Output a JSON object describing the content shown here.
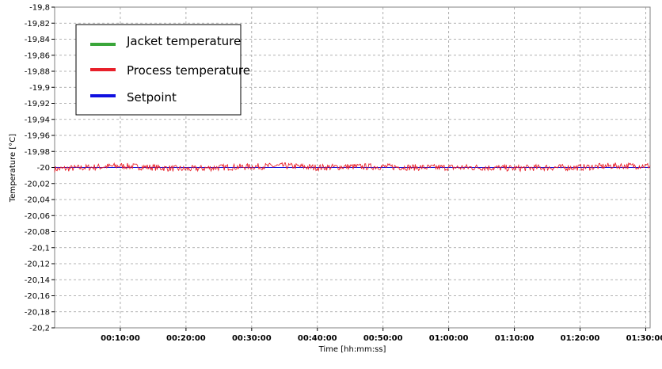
{
  "chart_data": {
    "type": "line",
    "xlabel": "Time [hh:mm:ss]",
    "ylabel": "Temperature [°C]",
    "ylim": [
      -20.2,
      -19.8
    ],
    "xlim": [
      "00:00:00",
      "01:30:40"
    ],
    "y_ticks": [
      -19.8,
      -19.82,
      -19.84,
      -19.86,
      -19.88,
      -19.9,
      -19.92,
      -19.94,
      -19.96,
      -19.98,
      -20,
      -20.02,
      -20.04,
      -20.06,
      -20.08,
      -20.1,
      -20.12,
      -20.14,
      -20.16,
      -20.18,
      -20.2
    ],
    "y_tick_labels": [
      "-19,8",
      "-19,82",
      "-19,84",
      "-19,86",
      "-19,88",
      "-19,9",
      "-19,92",
      "-19,94",
      "-19,96",
      "-19,98",
      "-20",
      "-20,02",
      "-20,04",
      "-20,06",
      "-20,08",
      "-20,1",
      "-20,12",
      "-20,14",
      "-20,16",
      "-20,18",
      "-20,2"
    ],
    "x_ticks": [
      "00:10:00",
      "00:20:00",
      "00:30:00",
      "00:40:00",
      "00:50:00",
      "01:00:00",
      "01:10:00",
      "01:20:00",
      "01:30:00"
    ],
    "grid": true,
    "legend_position": "top-left",
    "series": [
      {
        "name": "Jacket temperature",
        "color": "#3aa63a",
        "values": []
      },
      {
        "name": "Process temperature",
        "color": "#e8202a",
        "x": [
          "00:00:00",
          "00:05:00",
          "00:10:00",
          "00:15:00",
          "00:20:00",
          "00:25:00",
          "00:30:00",
          "00:35:00",
          "00:40:00",
          "00:45:00",
          "00:50:00",
          "00:55:00",
          "01:00:00",
          "01:05:00",
          "01:10:00",
          "01:15:00",
          "01:20:00",
          "01:25:00",
          "01:30:00",
          "01:30:40"
        ],
        "values": [
          -20.002,
          -20.0,
          -19.998,
          -20.0,
          -20.002,
          -20.0,
          -19.999,
          -19.998,
          -20.0,
          -19.999,
          -19.999,
          -20.0,
          -20.0,
          -20.0,
          -20.001,
          -20.0,
          -20.0,
          -19.998,
          -19.998,
          -19.998
        ],
        "noise_amplitude": 0.004
      },
      {
        "name": "Setpoint",
        "color": "#1010e0",
        "x": [
          "00:00:00",
          "01:30:40"
        ],
        "values": [
          -20,
          -20
        ]
      }
    ]
  }
}
